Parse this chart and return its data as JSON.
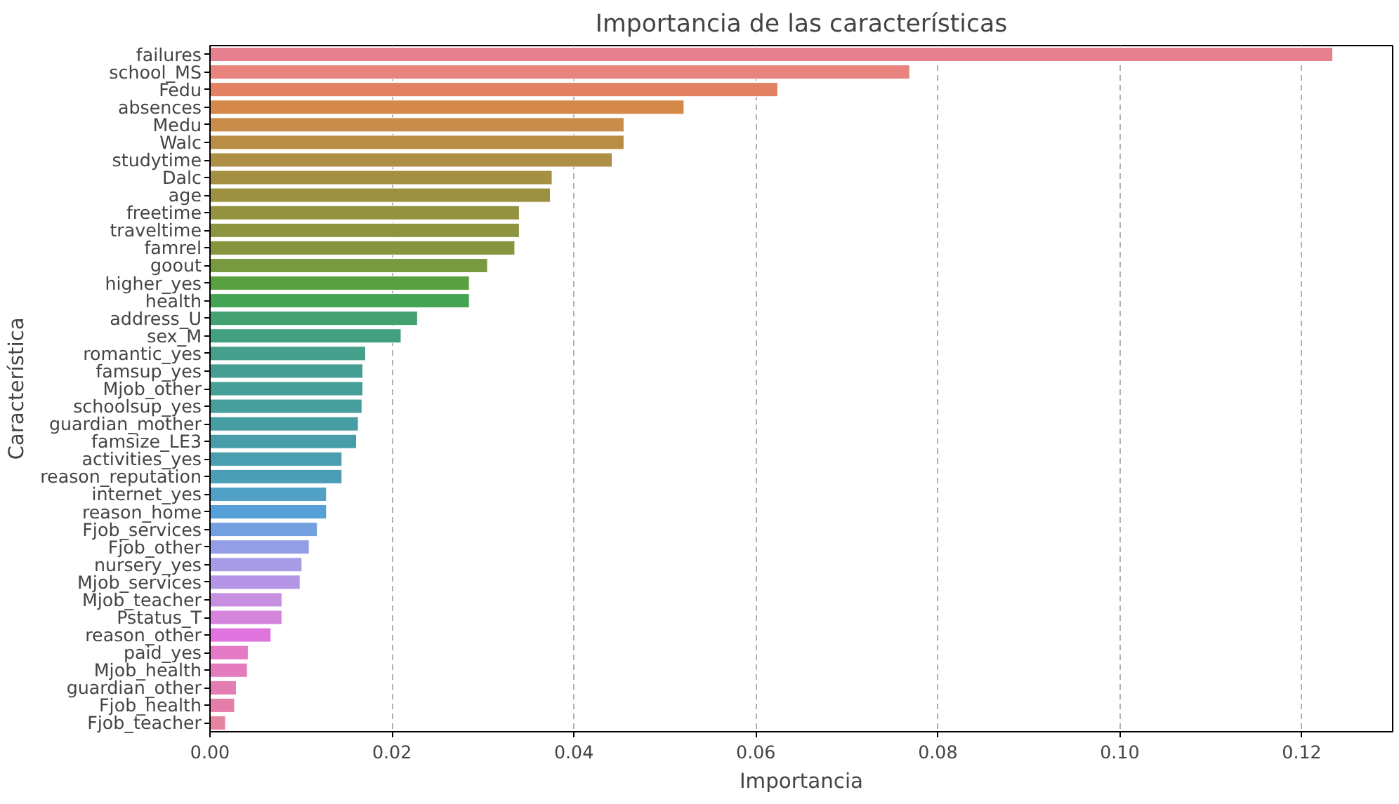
{
  "chart_data": {
    "type": "bar",
    "orientation": "horizontal",
    "title": "Importancia de las características",
    "xlabel": "Importancia",
    "ylabel": "Característica",
    "categories": [
      "failures",
      "school_MS",
      "Fedu",
      "absences",
      "Medu",
      "Walc",
      "studytime",
      "Dalc",
      "age",
      "freetime",
      "traveltime",
      "famrel",
      "goout",
      "higher_yes",
      "health",
      "address_U",
      "sex_M",
      "romantic_yes",
      "famsup_yes",
      "Mjob_other",
      "schoolsup_yes",
      "guardian_mother",
      "famsize_LE3",
      "activities_yes",
      "reason_reputation",
      "internet_yes",
      "reason_home",
      "Fjob_services",
      "Fjob_other",
      "nursery_yes",
      "Mjob_services",
      "Mjob_teacher",
      "Pstatus_T",
      "reason_other",
      "paid_yes",
      "Mjob_health",
      "guardian_other",
      "Fjob_health",
      "Fjob_teacher"
    ],
    "values": [
      0.1234,
      0.0769,
      0.0624,
      0.0521,
      0.0455,
      0.0455,
      0.0442,
      0.0376,
      0.0374,
      0.034,
      0.034,
      0.0335,
      0.0305,
      0.0285,
      0.0285,
      0.0228,
      0.021,
      0.0171,
      0.0168,
      0.0168,
      0.0167,
      0.0163,
      0.0161,
      0.0145,
      0.0145,
      0.0128,
      0.0128,
      0.0118,
      0.0109,
      0.0101,
      0.0099,
      0.0079,
      0.0079,
      0.0067,
      0.0042,
      0.0041,
      0.0029,
      0.0027,
      0.0017
    ],
    "colors": [
      "#e6808f",
      "#e8837d",
      "#e28163",
      "#d4884a",
      "#c88d4a",
      "#b88e47",
      "#ad8f46",
      "#a48f43",
      "#9b9140",
      "#949440",
      "#8d9440",
      "#86963f",
      "#78993f",
      "#5aa040",
      "#45a354",
      "#43a070",
      "#43a07e",
      "#44a08a",
      "#449f92",
      "#459f97",
      "#469e9d",
      "#479ea2",
      "#489ea8",
      "#4a9eaf",
      "#4c9eb6",
      "#51a0c6",
      "#56a0d8",
      "#74a0e2",
      "#939ee6",
      "#a89ce6",
      "#b595e6",
      "#c68fe0",
      "#d586dc",
      "#e074de",
      "#e479c6",
      "#e47bbd",
      "#e47db3",
      "#e57fa9",
      "#e5849f"
    ],
    "xlim": [
      0,
      0.13
    ],
    "xticks": [
      {
        "value": 0,
        "label": "0.00"
      },
      {
        "value": 0.02,
        "label": "0.02"
      },
      {
        "value": 0.04,
        "label": "0.04"
      },
      {
        "value": 0.06,
        "label": "0.06"
      },
      {
        "value": 0.08,
        "label": "0.08"
      },
      {
        "value": 0.1,
        "label": "0.10"
      },
      {
        "value": 0.12,
        "label": "0.12"
      }
    ],
    "grid": "x"
  }
}
